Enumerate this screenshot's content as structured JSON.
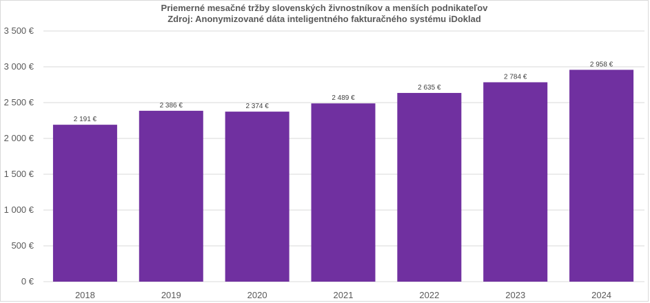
{
  "chart_data": {
    "type": "bar",
    "title": "Priemerné mesačné tržby slovenských živnostníkov a menších podnikateľov",
    "subtitle": "Zdroj: Anonymizované dáta inteligentného fakturačného systému iDoklad",
    "xlabel": "",
    "ylabel": "",
    "categories": [
      "2018",
      "2019",
      "2020",
      "2021",
      "2022",
      "2023",
      "2024"
    ],
    "values": [
      2191,
      2386,
      2374,
      2489,
      2635,
      2784,
      2958
    ],
    "data_labels": [
      "2 191 €",
      "2 386 €",
      "2 374 €",
      "2 489 €",
      "2 635 €",
      "2 784 €",
      "2 958 €"
    ],
    "y_ticks": [
      0,
      500,
      1000,
      1500,
      2000,
      2500,
      3000,
      3500
    ],
    "y_tick_labels": [
      "0 €",
      "500 €",
      "1 000 €",
      "1 500 €",
      "2 000 €",
      "2 500 €",
      "3 000 €",
      "3 500 €"
    ],
    "ylim": [
      0,
      3500
    ],
    "grid": true,
    "legend": "none",
    "bar_color": "#7030a0",
    "grid_color": "#d9d9d9"
  }
}
